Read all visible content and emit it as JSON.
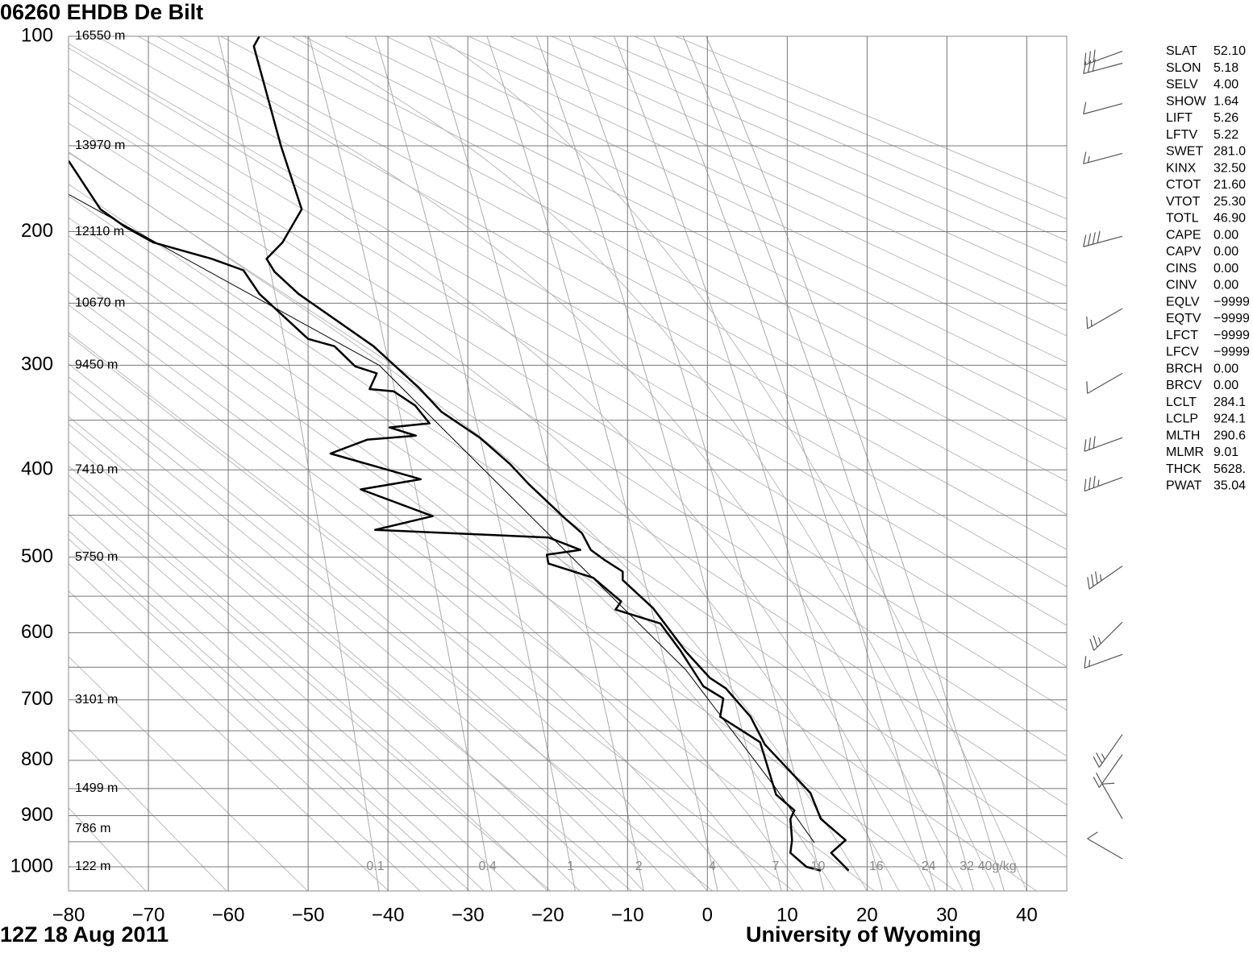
{
  "chart_data": {
    "type": "stuve",
    "title": "06260 EHDB De Bilt",
    "time_label": "12Z 18 Aug 2011",
    "source": "University of Wyoming",
    "xlim": [
      -80,
      45
    ],
    "ylim": [
      100,
      1050
    ],
    "xticks": [
      {
        "value": -80,
        "label": "−80"
      },
      {
        "value": -70,
        "label": "−70"
      },
      {
        "value": -60,
        "label": "−60"
      },
      {
        "value": -50,
        "label": "−50"
      },
      {
        "value": -40,
        "label": "−40"
      },
      {
        "value": -30,
        "label": "−30"
      },
      {
        "value": -20,
        "label": "−20"
      },
      {
        "value": -10,
        "label": "−10"
      },
      0,
      10,
      20,
      30,
      40
    ],
    "yticks": [
      100,
      200,
      300,
      400,
      500,
      600,
      700,
      800,
      900,
      1000
    ],
    "yminor": [
      150,
      250,
      350,
      450,
      550,
      650,
      750,
      850,
      950
    ],
    "grid": true,
    "height_labels": [
      {
        "pressure": 100,
        "label": "16550 m"
      },
      {
        "pressure": 150,
        "label": "13970 m"
      },
      {
        "pressure": 200,
        "label": "12110 m"
      },
      {
        "pressure": 250,
        "label": "10670 m"
      },
      {
        "pressure": 300,
        "label": "9450 m"
      },
      {
        "pressure": 400,
        "label": "7410 m"
      },
      {
        "pressure": 500,
        "label": "5750 m"
      },
      {
        "pressure": 700,
        "label": "3101 m"
      },
      {
        "pressure": 850,
        "label": "1499 m"
      },
      {
        "pressure": 925,
        "label": "786 m"
      },
      {
        "pressure": 1000,
        "label": "122 m"
      }
    ],
    "mixing_ratio_lines": [
      0.1,
      0.4,
      1,
      2,
      4,
      7,
      10,
      16,
      24,
      32,
      {
        "value": 40,
        "label": "40g/kg"
      }
    ],
    "series": [
      {
        "color": "#000000",
        "width": 2.5,
        "pressure": [
          100,
          104,
          150,
          186,
          207,
          218,
          227,
          243,
          284,
          307,
          320,
          342,
          367,
          394,
          415,
          453,
          471,
          491,
          504,
          518,
          529,
          566,
          627,
          666,
          682,
          727,
          773,
          858,
          906,
          947,
          972,
          1008
        ],
        "temperature": [
          -56.1,
          -56.8,
          -53.4,
          -50.8,
          -53.2,
          -55.2,
          -54.2,
          -51.2,
          -41.8,
          -38.1,
          -36.1,
          -33.3,
          -28.5,
          -24.7,
          -22.4,
          -17.9,
          -15.7,
          -14.6,
          -12.8,
          -10.6,
          -10.6,
          -6.8,
          -2.7,
          0.3,
          2.3,
          5.4,
          7.2,
          12.9,
          14.2,
          17.3,
          15.5,
          17.7
        ]
      },
      {
        "color": "#000000",
        "width": 2.5,
        "pressure": [
          158,
          186,
          197,
          207,
          218,
          226,
          243,
          278,
          284,
          301,
          307,
          321,
          323,
          336,
          353,
          357,
          365,
          369,
          383,
          410,
          421,
          451,
          467,
          476,
          491,
          497,
          508,
          526,
          557,
          568,
          587,
          625,
          679,
          698,
          727,
          769,
          861,
          890,
          906,
          947,
          972,
          1000,
          1008
        ],
        "temperature": [
          -80,
          -76.0,
          -72.9,
          -69.4,
          -62.1,
          -58.1,
          -56.1,
          -50.0,
          -46.7,
          -44.1,
          -41.4,
          -42.3,
          -39.3,
          -36.6,
          -34.8,
          -39.8,
          -36.5,
          -42.6,
          -47.2,
          -35.9,
          -43.4,
          -34.4,
          -41.6,
          -19.9,
          -15.9,
          -20.1,
          -19.9,
          -14.3,
          -10.8,
          -11.5,
          -5.9,
          -3.4,
          -0.5,
          2.0,
          1.6,
          6.6,
          8.6,
          10.9,
          10.4,
          10.6,
          10.4,
          12.4,
          14.2
        ]
      },
      {
        "color": "#000000",
        "width": 1,
        "pressure": [
          177,
          300,
          496,
          654,
          846,
          952
        ],
        "temperature": [
          -80,
          -41.1,
          -17.4,
          -2.7,
          8.4,
          13.4
        ]
      }
    ],
    "winds": {
      "pressure": [
        106,
        111,
        129,
        154,
        203,
        254,
        307,
        367,
        408,
        511,
        585,
        631,
        756,
        790,
        906,
        984
      ],
      "direction": [
        250,
        255,
        255,
        255,
        255,
        240,
        240,
        250,
        250,
        235,
        225,
        250,
        215,
        215,
        330,
        300
      ],
      "speed": [
        30,
        30,
        10,
        15,
        40,
        15,
        10,
        30,
        35,
        35,
        25,
        15,
        25,
        20,
        10,
        10
      ]
    },
    "station_info": [
      {
        "name": "SLAT",
        "value": "52.10"
      },
      {
        "name": "SLON",
        "value": "5.18"
      },
      {
        "name": "SELV",
        "value": "4.00"
      },
      {
        "name": "SHOW",
        "value": "1.64"
      },
      {
        "name": "LIFT",
        "value": "5.26"
      },
      {
        "name": "LFTV",
        "value": "5.22"
      },
      {
        "name": "SWET",
        "value": "281.0"
      },
      {
        "name": "KINX",
        "value": "32.50"
      },
      {
        "name": "CTOT",
        "value": "21.60"
      },
      {
        "name": "VTOT",
        "value": "25.30"
      },
      {
        "name": "TOTL",
        "value": "46.90"
      },
      {
        "name": "CAPE",
        "value": "0.00"
      },
      {
        "name": "CAPV",
        "value": "0.00"
      },
      {
        "name": "CINS",
        "value": "0.00"
      },
      {
        "name": "CINV",
        "value": "0.00"
      },
      {
        "name": "EQLV",
        "value": "−9999"
      },
      {
        "name": "EQTV",
        "value": "−9999"
      },
      {
        "name": "LFCT",
        "value": "−9999"
      },
      {
        "name": "LFCV",
        "value": "−9999"
      },
      {
        "name": "BRCH",
        "value": "0.00"
      },
      {
        "name": "BRCV",
        "value": "0.00"
      },
      {
        "name": "LCLT",
        "value": "284.1"
      },
      {
        "name": "LCLP",
        "value": "924.1"
      },
      {
        "name": "MLTH",
        "value": "290.6"
      },
      {
        "name": "MLMR",
        "value": "9.01"
      },
      {
        "name": "THCK",
        "value": "5628."
      },
      {
        "name": "PWAT",
        "value": "35.04"
      }
    ]
  }
}
